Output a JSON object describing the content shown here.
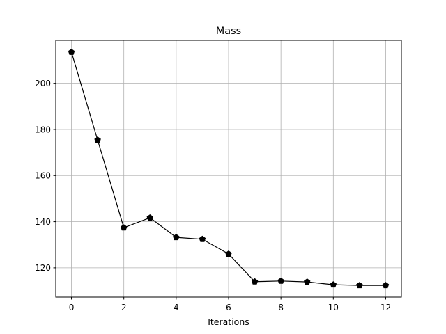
{
  "chart_data": {
    "type": "line",
    "title": "Mass",
    "xlabel": "Iterations",
    "ylabel": "",
    "xlim": [
      -0.6,
      12.6
    ],
    "ylim": [
      107.3,
      218.6
    ],
    "xticks": [
      0,
      2,
      4,
      6,
      8,
      10,
      12
    ],
    "yticks": [
      120,
      140,
      160,
      180,
      200
    ],
    "xtick_labels": [
      "0",
      "2",
      "4",
      "6",
      "8",
      "10",
      "12"
    ],
    "ytick_labels": [
      "120",
      "140",
      "160",
      "180",
      "200"
    ],
    "grid": true,
    "marker": "pentagon",
    "line_color": "#000000",
    "series": [
      {
        "x": [
          0,
          1,
          2,
          3,
          4,
          5,
          6,
          7,
          8,
          9,
          10,
          11,
          12
        ],
        "values": [
          213.5,
          175.4,
          137.4,
          141.7,
          133.2,
          132.4,
          126.0,
          114.0,
          114.3,
          113.9,
          112.7,
          112.4,
          112.4
        ]
      }
    ]
  }
}
